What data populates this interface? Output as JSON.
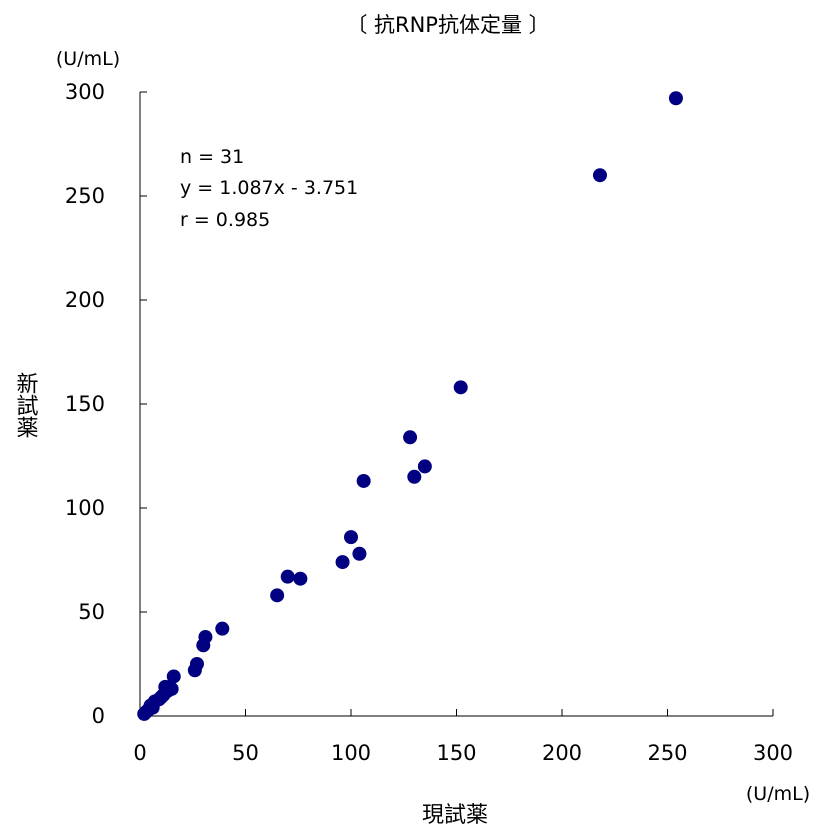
{
  "chart_data": {
    "type": "scatter",
    "title": "〔 抗RNP抗体定量 〕",
    "xlabel": "現試薬",
    "ylabel": "新試薬",
    "x_unit": "(U/mL)",
    "y_unit": "(U/mL)",
    "xlim": [
      0,
      300
    ],
    "ylim": [
      0,
      300
    ],
    "xticks": [
      "0",
      "50",
      "100",
      "150",
      "200",
      "250",
      "300"
    ],
    "yticks": [
      "0",
      "50",
      "100",
      "150",
      "200",
      "250",
      "300"
    ],
    "grid": false,
    "marker_color": "#000080",
    "annotations": [
      "n = 31",
      "y = 1.087x - 3.751",
      "r = 0.985"
    ],
    "series": [
      {
        "points": [
          [
            3,
            2
          ],
          [
            4,
            3
          ],
          [
            5,
            5
          ],
          [
            7,
            7
          ],
          [
            9,
            8
          ],
          [
            11,
            10
          ],
          [
            12,
            14
          ],
          [
            13,
            12
          ],
          [
            15,
            13
          ],
          [
            16,
            19
          ],
          [
            26,
            22
          ],
          [
            27,
            25
          ],
          [
            30,
            34
          ],
          [
            31,
            38
          ],
          [
            39,
            42
          ],
          [
            65,
            58
          ],
          [
            70,
            67
          ],
          [
            76,
            66
          ],
          [
            96,
            74
          ],
          [
            100,
            86
          ],
          [
            104,
            78
          ],
          [
            106,
            113
          ],
          [
            128,
            134
          ],
          [
            130,
            115
          ],
          [
            135,
            120
          ],
          [
            152,
            158
          ],
          [
            218,
            260
          ],
          [
            254,
            297
          ],
          [
            2,
            1
          ],
          [
            6,
            4
          ],
          [
            10,
            9
          ]
        ]
      }
    ]
  }
}
